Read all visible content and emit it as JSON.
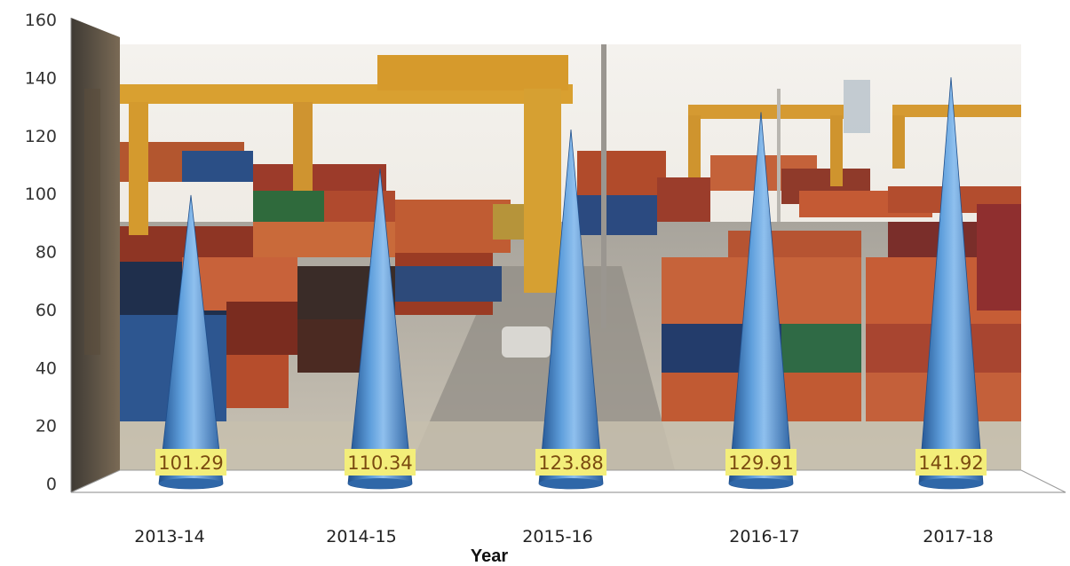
{
  "chart_data": {
    "type": "bar",
    "mark_shape": "cone",
    "categories": [
      "2013-14",
      "2014-15",
      "2015-16",
      "2016-17",
      "2017-18"
    ],
    "values": [
      101.29,
      110.34,
      123.88,
      129.91,
      141.92
    ],
    "value_labels": [
      "101.29",
      "110.34",
      "123.88",
      "129.91",
      "141.92"
    ],
    "xlabel": "Year",
    "ylabel": "",
    "title": "",
    "ylim": [
      0,
      160
    ],
    "yticks": [
      0,
      20,
      40,
      60,
      80,
      100,
      120,
      140,
      160
    ],
    "grid": false,
    "legend": "none",
    "background": "photo of container port with stacked shipping containers and yellow gantry cranes",
    "colors": {
      "cone": "#3d7fc8",
      "cone_highlight": "#8fc0ee",
      "cone_shadow": "#1f4f8c",
      "label_bg": "#f3ee7a",
      "label_text": "#7a4a10"
    }
  }
}
